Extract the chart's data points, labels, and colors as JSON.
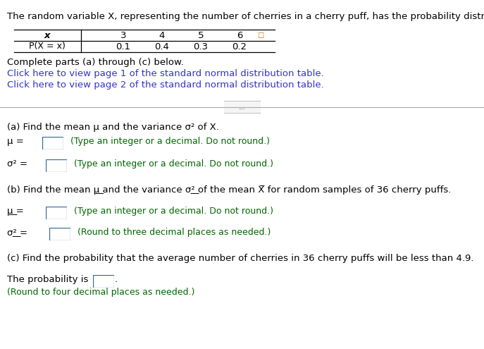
{
  "title_text": "The random variable X, representing the number of cherries in a cherry puff, has the probability distribution shown.",
  "table": {
    "x_label": "x",
    "px_label": "P(X = x)",
    "x_values": [
      "3",
      "4",
      "5",
      "6"
    ],
    "p_values": [
      "0.1",
      "0.4",
      "0.3",
      "0.2"
    ]
  },
  "complete_parts": "Complete parts (a) through (c) below.",
  "link1": "Click here to view page 1 of the standard normal distribution table.",
  "link2": "Click here to view page 2 of the standard normal distribution table.",
  "divider_button": "...",
  "part_a_title": "(a) Find the mean μ and the variance σ² of X.",
  "mu_note": "(Type an integer or a decimal. Do not round.)",
  "sigma2_note": "(Type an integer or a decimal. Do not round.)",
  "part_b_title": "(b) Find the mean μ͟ and the variance σ²͟ of the mean X̅ for random samples of 36 cherry puffs.",
  "mu_xbar_note": "(Type an integer or a decimal. Do not round.)",
  "sigma2_xbar_note": "(Round to three decimal places as needed.)",
  "part_c_title": "(c) Find the probability that the average number of cherries in 36 cherry puffs will be less than 4.9.",
  "prob_line": "The probability is",
  "prob_note": "(Round to four decimal places as needed.)",
  "bg_color": "#ffffff",
  "text_color": "#000000",
  "link_color": "#3333cc",
  "teal_color": "#1a5c5c",
  "hint_color": "#006600",
  "box_border_color": "#336699",
  "expand_icon_color": "#cc6600",
  "divider_color": "#aaaaaa",
  "font_size": 9.5,
  "font_family": "DejaVu Sans"
}
